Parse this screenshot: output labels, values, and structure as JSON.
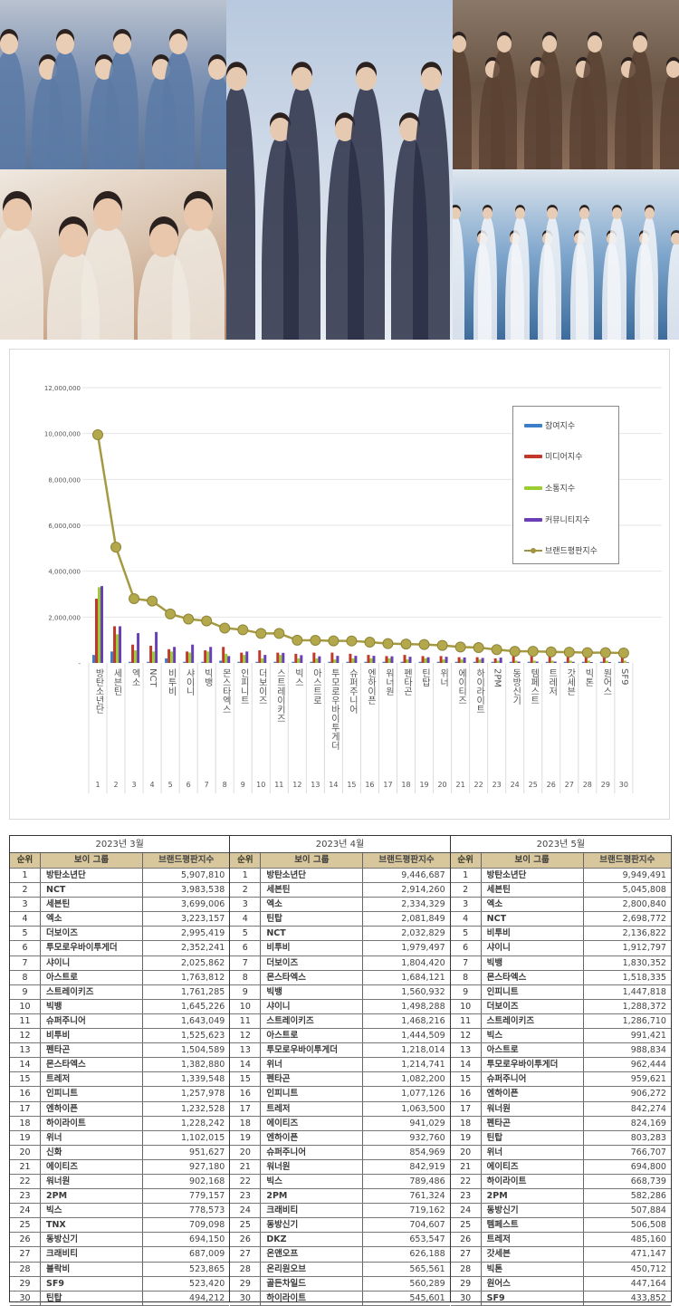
{
  "colors": {
    "participation": "#3c7fc8",
    "media": "#c0392b",
    "communication": "#9acd32",
    "community": "#6a3fb5",
    "brand": "#a59a42"
  },
  "chart_data": {
    "type": "bar+line",
    "categories": [
      "1",
      "2",
      "3",
      "4",
      "5",
      "6",
      "7",
      "8",
      "9",
      "10",
      "11",
      "12",
      "13",
      "14",
      "15",
      "16",
      "17",
      "18",
      "19",
      "20",
      "21",
      "22",
      "23",
      "24",
      "25",
      "26",
      "27",
      "28",
      "29",
      "30"
    ],
    "category_labels": [
      "방탄소년단",
      "세븐틴",
      "엑소",
      "NCT",
      "비투비",
      "샤이니",
      "빅뱅",
      "몬스타엑스",
      "인피니트",
      "더보이즈",
      "스트레이키즈",
      "빅스",
      "아스트로",
      "투모로우바이투게더",
      "슈퍼주니어",
      "엔하이픈",
      "워너원",
      "펜타곤",
      "틴탑",
      "위너",
      "에이티즈",
      "하이라이트",
      "2PM",
      "동방신기",
      "템페스트",
      "트레저",
      "갓세븐",
      "빅톤",
      "원어스",
      "SF9"
    ],
    "ylim": [
      0,
      12000000
    ],
    "yticks": [
      "-",
      "2,000,000",
      "4,000,000",
      "6,000,000",
      "8,000,000",
      "10,000,000",
      "12,000,000"
    ],
    "ytick_values": [
      0,
      2000000,
      4000000,
      6000000,
      8000000,
      10000000,
      12000000
    ],
    "grid": "horizontal",
    "legend_position": "right",
    "series": [
      {
        "name": "참여지수",
        "kind": "bar",
        "values": [
          350000,
          500000,
          50000,
          50000,
          200000,
          50000,
          50000,
          100000,
          50000,
          50000,
          50000,
          50000,
          50000,
          50000,
          50000,
          50000,
          50000,
          50000,
          50000,
          50000,
          50000,
          50000,
          50000,
          50000,
          50000,
          50000,
          50000,
          50000,
          50000,
          50000
        ]
      },
      {
        "name": "미디어지수",
        "kind": "bar",
        "values": [
          2800000,
          1600000,
          800000,
          750000,
          600000,
          500000,
          550000,
          700000,
          450000,
          550000,
          450000,
          400000,
          450000,
          450000,
          400000,
          350000,
          300000,
          350000,
          300000,
          300000,
          250000,
          250000,
          200000,
          300000,
          300000,
          280000,
          270000,
          260000,
          260000,
          250000
        ]
      },
      {
        "name": "소통지수",
        "kind": "bar",
        "values": [
          3300000,
          1250000,
          550000,
          500000,
          500000,
          450000,
          500000,
          400000,
          350000,
          200000,
          350000,
          200000,
          200000,
          150000,
          200000,
          200000,
          200000,
          150000,
          200000,
          150000,
          150000,
          150000,
          100000,
          100000,
          100000,
          100000,
          100000,
          100000,
          100000,
          100000
        ]
      },
      {
        "name": "커뮤니티지수",
        "kind": "bar",
        "values": [
          3350000,
          1600000,
          1300000,
          1350000,
          700000,
          800000,
          700000,
          300000,
          500000,
          350000,
          440000,
          340000,
          290000,
          310000,
          310000,
          310000,
          290000,
          270000,
          250000,
          270000,
          240000,
          220000,
          230000,
          60000,
          60000,
          60000,
          50000,
          40000,
          40000,
          30000
        ]
      },
      {
        "name": "브랜드평판지수",
        "kind": "line",
        "values": [
          9949491,
          5045808,
          2800840,
          2698772,
          2136822,
          1912797,
          1830352,
          1518335,
          1447818,
          1288372,
          1286710,
          991421,
          988834,
          962444,
          959621,
          906272,
          842274,
          824169,
          803283,
          766707,
          694800,
          668739,
          582286,
          507884,
          506508,
          485160,
          471147,
          450712,
          447164,
          433852
        ]
      }
    ]
  },
  "table": {
    "headers": {
      "rank": "순위",
      "group": "보이 그룹",
      "index": "브랜드평판지수"
    },
    "months": [
      {
        "title": "2023년 3월",
        "rows": [
          [
            "1",
            "방탄소년단",
            "5,907,810"
          ],
          [
            "2",
            "NCT",
            "3,983,538"
          ],
          [
            "3",
            "세븐틴",
            "3,699,006"
          ],
          [
            "4",
            "엑소",
            "3,223,157"
          ],
          [
            "5",
            "더보이즈",
            "2,995,419"
          ],
          [
            "6",
            "투모로우바이투게더",
            "2,352,241"
          ],
          [
            "7",
            "샤이니",
            "2,025,862"
          ],
          [
            "8",
            "아스트로",
            "1,763,812"
          ],
          [
            "9",
            "스트레이키즈",
            "1,761,285"
          ],
          [
            "10",
            "빅뱅",
            "1,645,226"
          ],
          [
            "11",
            "슈퍼주니어",
            "1,643,049"
          ],
          [
            "12",
            "비투비",
            "1,525,623"
          ],
          [
            "13",
            "펜타곤",
            "1,504,589"
          ],
          [
            "14",
            "몬스타엑스",
            "1,382,880"
          ],
          [
            "15",
            "트레저",
            "1,339,548"
          ],
          [
            "16",
            "인피니트",
            "1,257,978"
          ],
          [
            "17",
            "엔하이픈",
            "1,232,528"
          ],
          [
            "18",
            "하이라이트",
            "1,228,242"
          ],
          [
            "19",
            "위너",
            "1,102,015"
          ],
          [
            "20",
            "신화",
            "951,627"
          ],
          [
            "21",
            "에이티즈",
            "927,180"
          ],
          [
            "22",
            "워너원",
            "902,168"
          ],
          [
            "23",
            "2PM",
            "779,157"
          ],
          [
            "24",
            "빅스",
            "778,573"
          ],
          [
            "25",
            "TNX",
            "709,098"
          ],
          [
            "26",
            "동방신기",
            "694,150"
          ],
          [
            "27",
            "크래비티",
            "687,009"
          ],
          [
            "28",
            "블락비",
            "523,865"
          ],
          [
            "29",
            "SF9",
            "523,420"
          ],
          [
            "30",
            "틴탑",
            "494,212"
          ]
        ]
      },
      {
        "title": "2023년 4월",
        "rows": [
          [
            "1",
            "방탄소년단",
            "9,446,687"
          ],
          [
            "2",
            "세븐틴",
            "2,914,260"
          ],
          [
            "3",
            "엑소",
            "2,334,329"
          ],
          [
            "4",
            "틴탑",
            "2,081,849"
          ],
          [
            "5",
            "NCT",
            "2,032,829"
          ],
          [
            "6",
            "비투비",
            "1,979,497"
          ],
          [
            "7",
            "더보이즈",
            "1,804,420"
          ],
          [
            "8",
            "몬스타엑스",
            "1,684,121"
          ],
          [
            "9",
            "빅뱅",
            "1,560,932"
          ],
          [
            "10",
            "샤이니",
            "1,498,288"
          ],
          [
            "11",
            "스트레이키즈",
            "1,468,216"
          ],
          [
            "12",
            "아스트로",
            "1,444,509"
          ],
          [
            "13",
            "투모로우바이투게더",
            "1,218,014"
          ],
          [
            "14",
            "위너",
            "1,214,741"
          ],
          [
            "15",
            "펜타곤",
            "1,082,200"
          ],
          [
            "16",
            "인피니트",
            "1,077,126"
          ],
          [
            "17",
            "트레저",
            "1,063,500"
          ],
          [
            "18",
            "에이티즈",
            "941,029"
          ],
          [
            "19",
            "엔하이픈",
            "932,760"
          ],
          [
            "20",
            "슈퍼주니어",
            "854,969"
          ],
          [
            "21",
            "워너원",
            "842,919"
          ],
          [
            "22",
            "빅스",
            "789,486"
          ],
          [
            "23",
            "2PM",
            "761,324"
          ],
          [
            "24",
            "크래비티",
            "719,162"
          ],
          [
            "25",
            "동방신기",
            "704,607"
          ],
          [
            "26",
            "DKZ",
            "653,547"
          ],
          [
            "27",
            "온앤오프",
            "626,188"
          ],
          [
            "28",
            "온리원오브",
            "565,561"
          ],
          [
            "29",
            "골든차일드",
            "560,289"
          ],
          [
            "30",
            "하이라이트",
            "545,601"
          ]
        ]
      },
      {
        "title": "2023년 5월",
        "rows": [
          [
            "1",
            "방탄소년단",
            "9,949,491"
          ],
          [
            "2",
            "세븐틴",
            "5,045,808"
          ],
          [
            "3",
            "엑소",
            "2,800,840"
          ],
          [
            "4",
            "NCT",
            "2,698,772"
          ],
          [
            "5",
            "비투비",
            "2,136,822"
          ],
          [
            "6",
            "샤이니",
            "1,912,797"
          ],
          [
            "7",
            "빅뱅",
            "1,830,352"
          ],
          [
            "8",
            "몬스타엑스",
            "1,518,335"
          ],
          [
            "9",
            "인피니트",
            "1,447,818"
          ],
          [
            "10",
            "더보이즈",
            "1,288,372"
          ],
          [
            "11",
            "스트레이키즈",
            "1,286,710"
          ],
          [
            "12",
            "빅스",
            "991,421"
          ],
          [
            "13",
            "아스트로",
            "988,834"
          ],
          [
            "14",
            "투모로우바이투게더",
            "962,444"
          ],
          [
            "15",
            "슈퍼주니어",
            "959,621"
          ],
          [
            "16",
            "엔하이픈",
            "906,272"
          ],
          [
            "17",
            "워너원",
            "842,274"
          ],
          [
            "18",
            "펜타곤",
            "824,169"
          ],
          [
            "19",
            "틴탑",
            "803,283"
          ],
          [
            "20",
            "위너",
            "766,707"
          ],
          [
            "21",
            "에이티즈",
            "694,800"
          ],
          [
            "22",
            "하이라이트",
            "668,739"
          ],
          [
            "23",
            "2PM",
            "582,286"
          ],
          [
            "24",
            "동방신기",
            "507,884"
          ],
          [
            "25",
            "템페스트",
            "506,508"
          ],
          [
            "26",
            "트레저",
            "485,160"
          ],
          [
            "27",
            "갓세븐",
            "471,147"
          ],
          [
            "28",
            "빅톤",
            "450,712"
          ],
          [
            "29",
            "원어스",
            "447,164"
          ],
          [
            "30",
            "SF9",
            "433,852"
          ]
        ]
      }
    ]
  }
}
